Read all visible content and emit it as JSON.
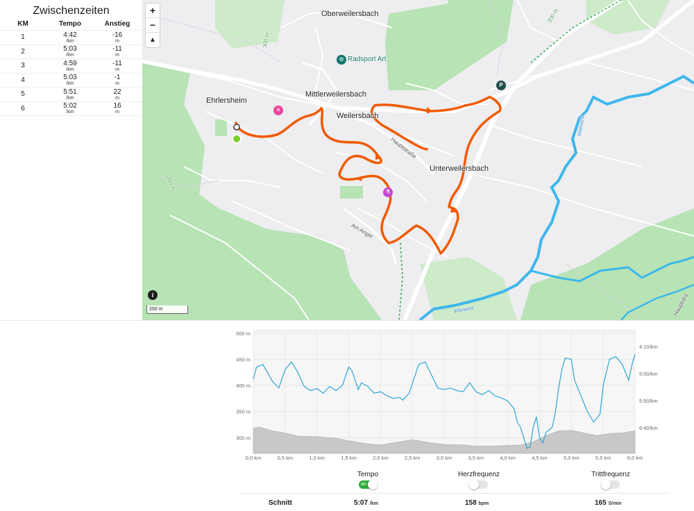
{
  "splits": {
    "title": "Zwischenzeiten",
    "headers": {
      "km": "KM",
      "tempo": "Tempo",
      "anstieg": "Anstieg"
    },
    "rows": [
      {
        "km": "1",
        "tempo": "4:42",
        "tempo_unit": "/km",
        "anstieg": "-16",
        "anstieg_unit": "m"
      },
      {
        "km": "2",
        "tempo": "5:03",
        "tempo_unit": "/km",
        "anstieg": "-11",
        "anstieg_unit": "m"
      },
      {
        "km": "3",
        "tempo": "4:59",
        "tempo_unit": "/km",
        "anstieg": "-11",
        "anstieg_unit": "m"
      },
      {
        "km": "4",
        "tempo": "5:03",
        "tempo_unit": "/km",
        "anstieg": "-1",
        "anstieg_unit": "m"
      },
      {
        "km": "5",
        "tempo": "5:51",
        "tempo_unit": "/km",
        "anstieg": "22",
        "anstieg_unit": "m"
      },
      {
        "km": "6",
        "tempo": "5:02",
        "tempo_unit": "/km",
        "anstieg": "16",
        "anstieg_unit": "m"
      }
    ]
  },
  "map": {
    "zoom_in": "+",
    "zoom_out": "−",
    "compass": "▲",
    "info": "i",
    "scale": "200 m",
    "labels": {
      "oberweilersbach": "Oberweilersbach",
      "radsport": "Radsport Art",
      "mittlerweilersbach": "Mittlerweilersbach",
      "ehrlersheim": "Ehrlersheim",
      "weilersbach": "Weilersbach",
      "hauptstrasse": "Hauptstraße",
      "unterweilersbach": "Unterweilersbach",
      "am_anger": "Am Anger",
      "wiesent1": "Wiesent",
      "wiesent2": "Wiesent",
      "hauptstrasse2": "Hauptstra",
      "c300a": "300 m",
      "c300b": "300 m",
      "c350": "350 m"
    },
    "colors": {
      "route": "#f05a00",
      "water": "#3db7ec",
      "forest": "#b7e3b5",
      "road": "#ffffff"
    }
  },
  "chart_data": {
    "type": "line",
    "x_label_unit": "km",
    "xlim": [
      0,
      6
    ],
    "x_ticks": [
      "0,0 km",
      "0,5 km",
      "1,0 km",
      "1,5 km",
      "2,0 km",
      "2,5 km",
      "3,0 km",
      "3,5 km",
      "4,0 km",
      "4,5 km",
      "5,0 km",
      "5,5 km",
      "6,0 km"
    ],
    "y_left_ticks": [
      "500 m",
      "450 m",
      "400 m",
      "350 m",
      "300 m"
    ],
    "y_left_lim": [
      270,
      500
    ],
    "y_right_ticks": [
      "4:10/km",
      "5:00/km",
      "5:50/km",
      "6:40/km"
    ],
    "series": [
      {
        "kind": "elevation-area",
        "color": "#c8c8c8",
        "x": [
          0,
          0.1,
          0.3,
          0.5,
          0.7,
          1.0,
          1.3,
          1.5,
          1.8,
          2.0,
          2.3,
          2.5,
          2.8,
          3.0,
          3.3,
          3.5,
          3.8,
          4.0,
          4.2,
          4.4,
          4.6,
          4.8,
          5.0,
          5.2,
          5.4,
          5.6,
          5.8,
          6.0
        ],
        "y": [
          318,
          320,
          313,
          309,
          303,
          302,
          299,
          294,
          288,
          286,
          292,
          296,
          290,
          287,
          286,
          284,
          284,
          285,
          286,
          292,
          304,
          313,
          314,
          309,
          304,
          308,
          309,
          313
        ]
      },
      {
        "kind": "pace",
        "color": "#3ba9d6",
        "x": [
          0,
          0.05,
          0.15,
          0.3,
          0.4,
          0.5,
          0.6,
          0.7,
          0.8,
          0.9,
          1.0,
          1.1,
          1.2,
          1.3,
          1.4,
          1.5,
          1.55,
          1.65,
          1.7,
          1.8,
          1.9,
          2.0,
          2.1,
          2.2,
          2.3,
          2.35,
          2.45,
          2.6,
          2.7,
          2.8,
          2.9,
          3.0,
          3.1,
          3.2,
          3.3,
          3.4,
          3.5,
          3.6,
          3.7,
          3.8,
          3.9,
          4.0,
          4.1,
          4.15,
          4.2,
          4.3,
          4.35,
          4.4,
          4.45,
          4.5,
          4.55,
          4.6,
          4.7,
          4.75,
          4.8,
          4.85,
          4.9,
          5.0,
          5.05,
          5.15,
          5.25,
          5.35,
          5.45,
          5.5,
          5.6,
          5.7,
          5.8,
          5.9,
          5.95,
          6.0
        ],
        "y": [
          412,
          435,
          440,
          408,
          395,
          430,
          445,
          425,
          398,
          390,
          394,
          385,
          398,
          390,
          400,
          435,
          428,
          392,
          405,
          398,
          385,
          388,
          380,
          375,
          377,
          372,
          385,
          440,
          445,
          420,
          395,
          392,
          395,
          390,
          388,
          405,
          388,
          382,
          390,
          380,
          376,
          370,
          355,
          330,
          320,
          280,
          282,
          320,
          340,
          300,
          290,
          310,
          320,
          350,
          395,
          430,
          452,
          450,
          410,
          380,
          350,
          330,
          345,
          400,
          450,
          455,
          440,
          410,
          438,
          460
        ]
      }
    ]
  },
  "toggles": [
    {
      "label": "Tempo",
      "state": "an",
      "on": true
    },
    {
      "label": "Herzfrequenz",
      "on": false
    },
    {
      "label": "Trittfrequenz",
      "on": false
    }
  ],
  "averages": {
    "label": "Schnitt",
    "tempo": "5:07",
    "tempo_unit": "/km",
    "hr": "158",
    "hr_unit": "bpm",
    "cadence": "165",
    "cadence_unit": "S/min"
  }
}
